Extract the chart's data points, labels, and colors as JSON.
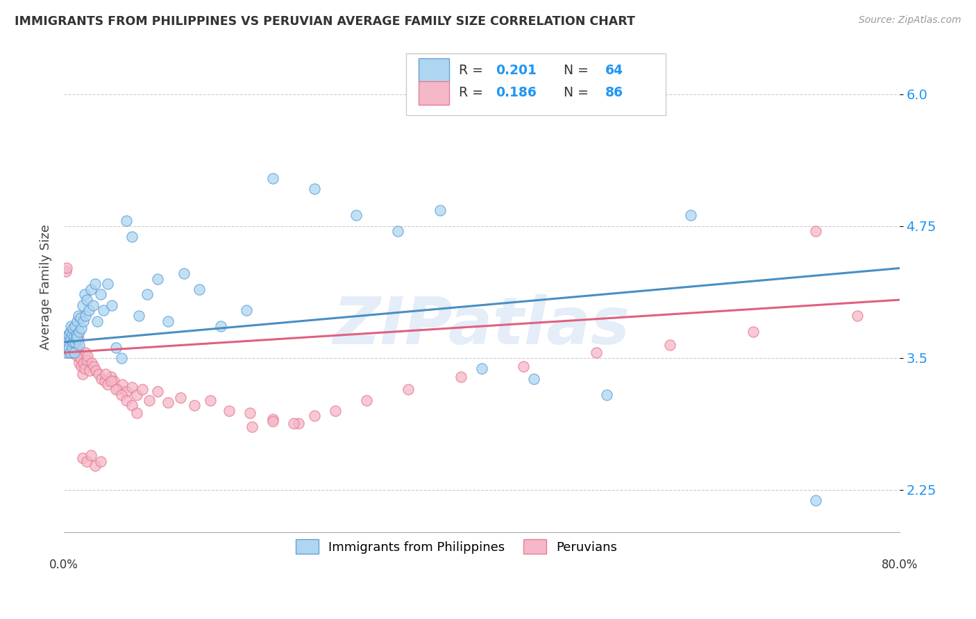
{
  "title": "IMMIGRANTS FROM PHILIPPINES VS PERUVIAN AVERAGE FAMILY SIZE CORRELATION CHART",
  "source": "Source: ZipAtlas.com",
  "ylabel": "Average Family Size",
  "yticks": [
    2.25,
    3.5,
    4.75,
    6.0
  ],
  "watermark": "ZIPatlas",
  "blue_color": "#5b9bd5",
  "pink_color": "#e8748a",
  "blue_fill": "#aed6f1",
  "pink_fill": "#f4b8c8",
  "trendline_blue": "#4a8ec2",
  "trendline_pink": "#e06080",
  "R_blue": 0.201,
  "N_blue": 64,
  "R_pink": 0.186,
  "N_pink": 86,
  "blue_x": [
    0.002,
    0.003,
    0.003,
    0.004,
    0.004,
    0.005,
    0.005,
    0.006,
    0.006,
    0.007,
    0.007,
    0.008,
    0.008,
    0.009,
    0.009,
    0.01,
    0.01,
    0.011,
    0.011,
    0.012,
    0.012,
    0.013,
    0.013,
    0.014,
    0.015,
    0.015,
    0.016,
    0.017,
    0.018,
    0.019,
    0.02,
    0.021,
    0.022,
    0.024,
    0.026,
    0.028,
    0.03,
    0.032,
    0.035,
    0.038,
    0.042,
    0.046,
    0.05,
    0.055,
    0.06,
    0.065,
    0.072,
    0.08,
    0.09,
    0.1,
    0.115,
    0.13,
    0.15,
    0.175,
    0.2,
    0.24,
    0.28,
    0.32,
    0.36,
    0.4,
    0.45,
    0.52,
    0.6,
    0.72
  ],
  "blue_y": [
    3.62,
    3.55,
    3.7,
    3.65,
    3.58,
    3.72,
    3.6,
    3.75,
    3.55,
    3.68,
    3.8,
    3.6,
    3.72,
    3.65,
    3.78,
    3.7,
    3.55,
    3.8,
    3.65,
    3.72,
    3.68,
    3.85,
    3.7,
    3.9,
    3.75,
    3.62,
    3.88,
    3.78,
    4.0,
    3.85,
    4.1,
    3.9,
    4.05,
    3.95,
    4.15,
    4.0,
    4.2,
    3.85,
    4.1,
    3.95,
    4.2,
    4.0,
    3.6,
    3.5,
    4.8,
    4.65,
    3.9,
    4.1,
    4.25,
    3.85,
    4.3,
    4.15,
    3.8,
    3.95,
    5.2,
    5.1,
    4.85,
    4.7,
    4.9,
    3.4,
    3.3,
    3.15,
    4.85,
    2.15
  ],
  "pink_x": [
    0.002,
    0.002,
    0.003,
    0.003,
    0.004,
    0.004,
    0.005,
    0.005,
    0.006,
    0.006,
    0.007,
    0.007,
    0.008,
    0.008,
    0.009,
    0.009,
    0.01,
    0.01,
    0.011,
    0.011,
    0.012,
    0.012,
    0.013,
    0.013,
    0.014,
    0.015,
    0.016,
    0.017,
    0.018,
    0.019,
    0.02,
    0.021,
    0.022,
    0.023,
    0.025,
    0.027,
    0.029,
    0.031,
    0.033,
    0.036,
    0.039,
    0.042,
    0.045,
    0.048,
    0.052,
    0.056,
    0.06,
    0.065,
    0.07,
    0.075,
    0.082,
    0.09,
    0.1,
    0.112,
    0.125,
    0.14,
    0.158,
    0.178,
    0.2,
    0.225,
    0.04,
    0.045,
    0.05,
    0.055,
    0.06,
    0.065,
    0.07,
    0.018,
    0.022,
    0.026,
    0.03,
    0.035,
    0.18,
    0.2,
    0.22,
    0.24,
    0.26,
    0.29,
    0.33,
    0.38,
    0.44,
    0.51,
    0.58,
    0.66,
    0.72,
    0.76
  ],
  "pink_y": [
    3.7,
    4.32,
    3.65,
    4.35,
    3.6,
    3.55,
    3.68,
    3.72,
    3.58,
    3.62,
    3.55,
    3.65,
    3.6,
    3.72,
    3.55,
    3.68,
    3.62,
    3.58,
    3.7,
    3.55,
    3.65,
    3.58,
    3.6,
    3.52,
    3.68,
    3.45,
    3.5,
    3.42,
    3.35,
    3.45,
    3.4,
    3.55,
    3.48,
    3.52,
    3.38,
    3.45,
    3.42,
    3.38,
    3.35,
    3.3,
    3.28,
    3.25,
    3.32,
    3.28,
    3.2,
    3.25,
    3.18,
    3.22,
    3.15,
    3.2,
    3.1,
    3.18,
    3.08,
    3.12,
    3.05,
    3.1,
    3.0,
    2.98,
    2.92,
    2.88,
    3.35,
    3.28,
    3.2,
    3.15,
    3.1,
    3.05,
    2.98,
    2.55,
    2.52,
    2.58,
    2.48,
    2.52,
    2.85,
    2.9,
    2.88,
    2.95,
    3.0,
    3.1,
    3.2,
    3.32,
    3.42,
    3.55,
    3.62,
    3.75,
    4.7,
    3.9
  ],
  "xlim": [
    0.0,
    0.8
  ],
  "ylim": [
    1.85,
    6.5
  ],
  "figsize": [
    14.06,
    8.92
  ],
  "dpi": 100,
  "legend_text_color": "#2196f3",
  "source_color": "#999999",
  "title_color": "#333333"
}
